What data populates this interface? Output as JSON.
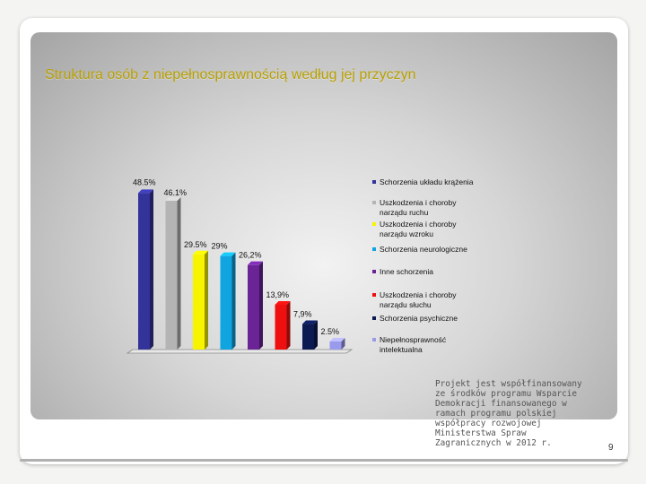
{
  "slide": {
    "title": "Struktura osób z niepełnosprawnością według jej przyczyn",
    "footer_note": "Projekt jest współfinansowany ze środków programu Wsparcie Demokracji finansowanego w ramach programu polskiej współpracy rozwojowej Ministerstwa Spraw Zagranicznych w 2012 r.",
    "page_number": "9"
  },
  "chart_data": {
    "type": "bar",
    "title": "",
    "xlabel": "",
    "ylabel": "",
    "ylim": [
      0,
      50
    ],
    "grid": false,
    "legend_position": "right",
    "categories": [
      "Schorzenia układu krążenia",
      "Uszkodzenia i choroby narządu ruchu",
      "Uszkodzenia i choroby narządu wzroku",
      "Schorzenia neurologiczne",
      "Inne schorzenia",
      "Uszkodzenia i choroby narządu słuchu",
      "Schorzenia psychiczne",
      "Niepełnosprawność intelektualna"
    ],
    "values": [
      48.5,
      46.1,
      29.5,
      29,
      26.2,
      13.9,
      7.9,
      2.5
    ],
    "value_labels": [
      "48.5%",
      "46.1%",
      "29.5%",
      "29%",
      "26,2%",
      "13,9%",
      "7,9%",
      "2.5%"
    ],
    "legend_lines": [
      [
        "Schorzenia układu krążenia"
      ],
      [
        "Uszkodzenia i choroby",
        "narządu ruchu"
      ],
      [
        "Uszkodzenia i choroby",
        "narządu wzroku"
      ],
      [
        "Schorzenia neurologiczne"
      ],
      [
        "Inne schorzenia"
      ],
      [
        "Uszkodzenia i choroby",
        "narządu słuchu"
      ],
      [
        "Schorzenia psychiczne"
      ],
      [
        "Niepełnosprawność",
        "intelektualna"
      ]
    ],
    "colors": [
      "#33339a",
      "#b4b4b4",
      "#f8f400",
      "#10a4e0",
      "#6a2496",
      "#ee1010",
      "#0c1a52",
      "#9a9aec"
    ]
  }
}
